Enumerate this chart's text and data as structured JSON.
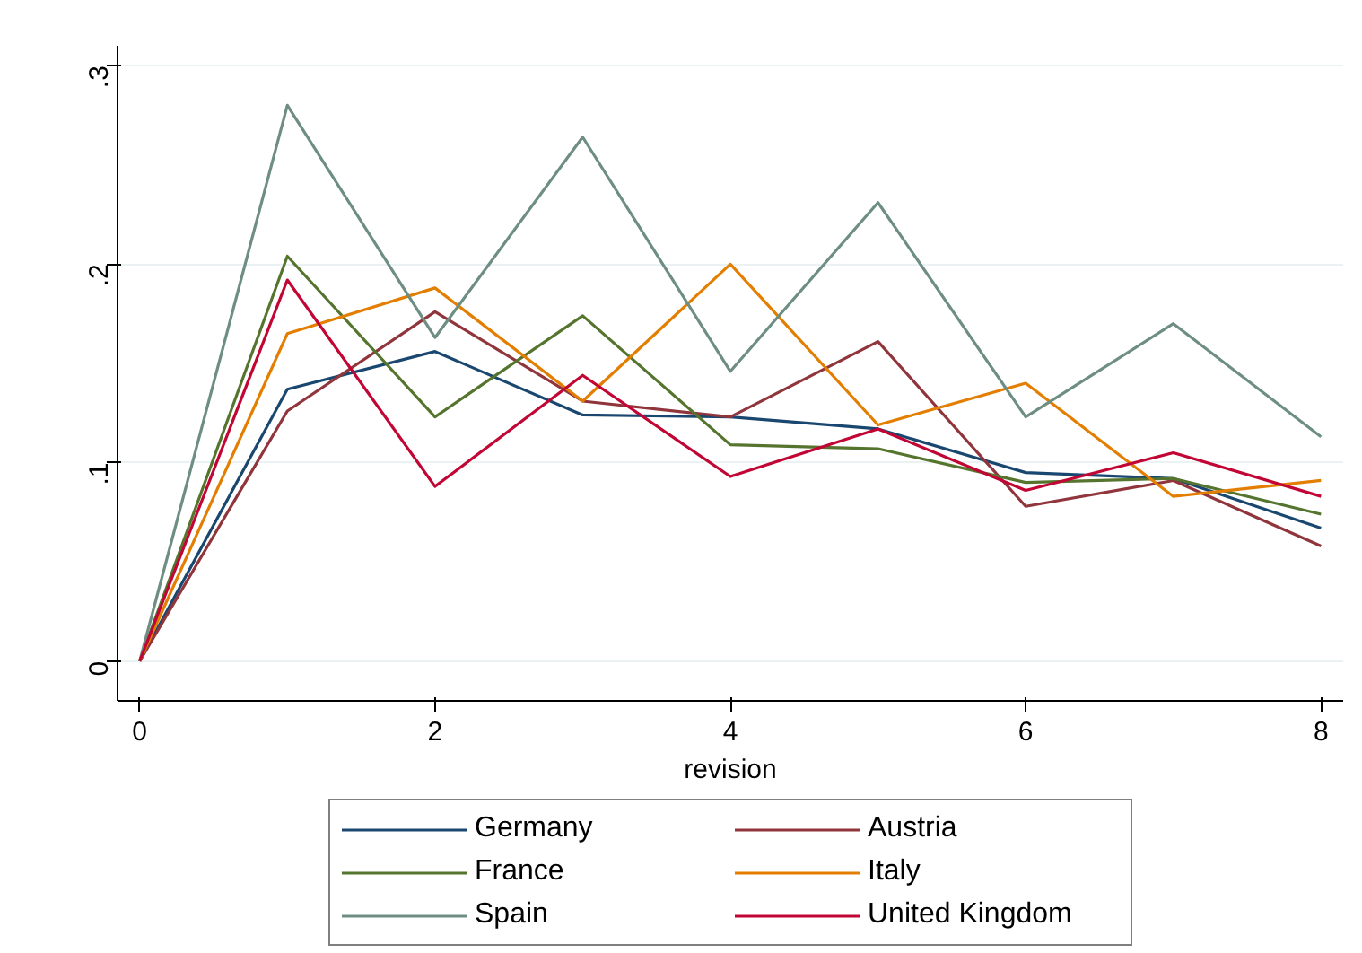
{
  "chart_data": {
    "type": "line",
    "xlabel": "revision",
    "x": [
      0,
      1,
      2,
      3,
      4,
      5,
      6,
      7,
      8
    ],
    "xlim": [
      -0.15,
      8.15
    ],
    "xticks": [
      0,
      2,
      4,
      6,
      8
    ],
    "ylim": [
      -0.02,
      0.31
    ],
    "yticks": [
      0,
      {
        "value": 0.1,
        "label": ".1"
      },
      {
        "value": 0.2,
        "label": ".2"
      },
      {
        "value": 0.3,
        "label": ".3"
      }
    ],
    "grid": "y",
    "legend": "bottom",
    "marker": "none",
    "line_style": "solid",
    "series": [
      {
        "name": "Germany",
        "color": "#1a476f",
        "values": [
          0,
          0.137,
          0.156,
          0.124,
          0.123,
          0.117,
          0.095,
          0.092,
          0.067
        ]
      },
      {
        "name": "Austria",
        "color": "#90353b",
        "values": [
          0,
          0.126,
          0.176,
          0.131,
          0.123,
          0.161,
          0.078,
          0.091,
          0.058
        ]
      },
      {
        "name": "France",
        "color": "#55752f",
        "values": [
          0,
          0.204,
          0.123,
          0.174,
          0.109,
          0.107,
          0.09,
          0.092,
          0.074
        ]
      },
      {
        "name": "Italy",
        "color": "#e37e00",
        "values": [
          0,
          0.165,
          0.188,
          0.131,
          0.2,
          0.119,
          0.14,
          0.083,
          0.091
        ]
      },
      {
        "name": "Spain",
        "color": "#6e8e84",
        "values": [
          0,
          0.28,
          0.163,
          0.264,
          0.146,
          0.231,
          0.123,
          0.17,
          0.113
        ]
      },
      {
        "name": "United Kingdom",
        "color": "#c10534",
        "values": [
          0,
          0.192,
          0.088,
          0.144,
          0.093,
          0.117,
          0.086,
          0.105,
          0.083
        ]
      }
    ]
  }
}
